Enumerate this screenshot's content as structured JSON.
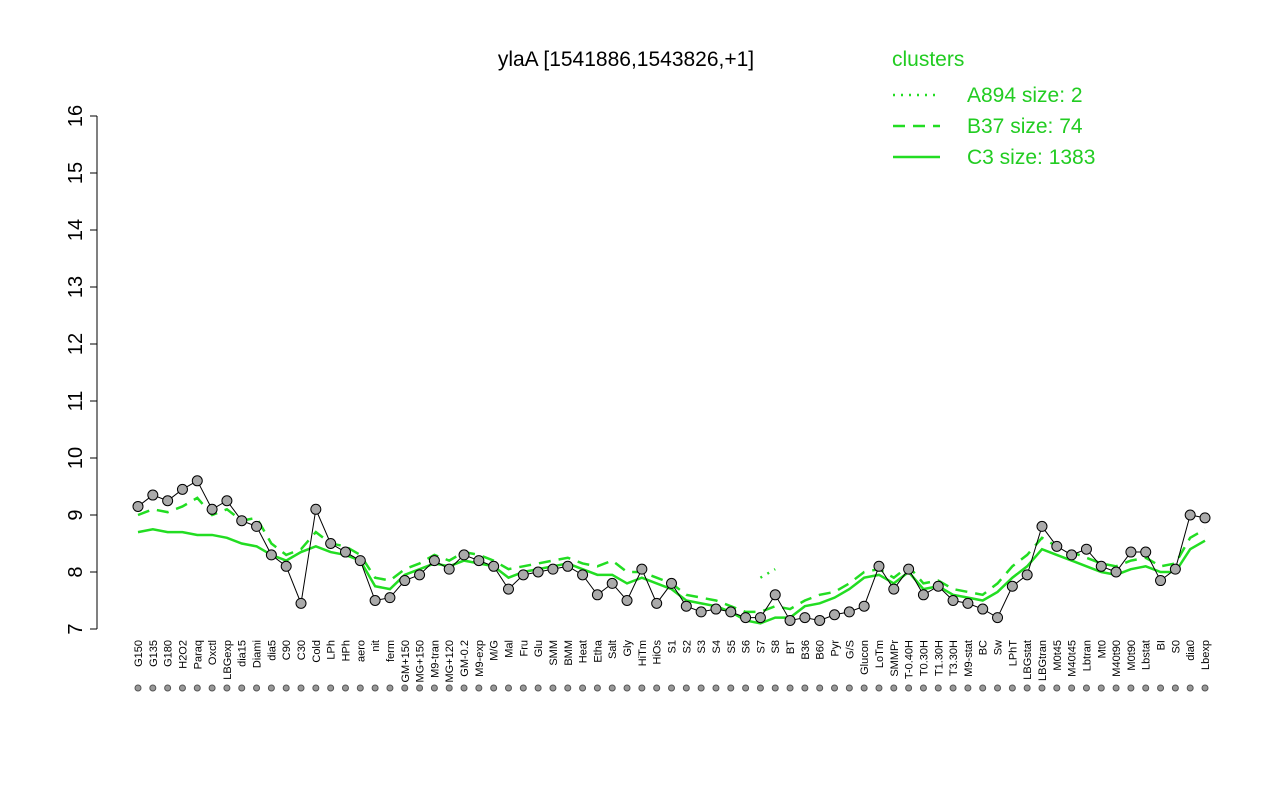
{
  "chart_data": {
    "type": "line",
    "title": "ylaA [1541886,1543826,+1]",
    "categories": [
      "G150",
      "G135",
      "G180",
      "H2O2",
      "Paraq",
      "Oxctl",
      "LBGexp",
      "dia15",
      "Diami",
      "dia5",
      "C90",
      "C30",
      "Cold",
      "LPh",
      "HPh",
      "aero",
      "nit",
      "ferm",
      "GM+150",
      "MG+150",
      "M9-tran",
      "MG+120",
      "GM-0.2",
      "M9-exp",
      "M/G",
      "Mal",
      "Fru",
      "Glu",
      "SMM",
      "BMM",
      "Heat",
      "Etha",
      "Salt",
      "Gly",
      "HiTm",
      "HiOs",
      "S1",
      "S2",
      "S3",
      "S4",
      "S5",
      "S6",
      "S7",
      "S8",
      "BT",
      "B36",
      "B60",
      "Pyr",
      "G/S",
      "Glucon",
      "LoTm",
      "SMMPr",
      "T-0.40H",
      "T0.30H",
      "T1.30H",
      "T3.30H",
      "M9-stat",
      "BC",
      "Sw",
      "LPhT",
      "LBGstat",
      "LBGtran",
      "M0t45",
      "M40t45",
      "Lbtran",
      "Mt0",
      "M40t90",
      "M0t90",
      "Lbstat",
      "BI",
      "S0",
      "dia0",
      "Lbexp"
    ],
    "values": [
      9.15,
      9.35,
      9.25,
      9.45,
      9.6,
      9.1,
      9.25,
      8.9,
      8.8,
      8.3,
      8.1,
      7.45,
      9.1,
      8.5,
      8.35,
      8.2,
      7.5,
      7.55,
      7.85,
      7.95,
      8.2,
      8.05,
      8.3,
      8.2,
      8.1,
      7.7,
      7.95,
      8.0,
      8.05,
      8.1,
      7.95,
      7.6,
      7.8,
      7.5,
      8.05,
      7.45,
      7.8,
      7.4,
      7.3,
      7.35,
      7.3,
      7.2,
      7.2,
      7.6,
      7.15,
      7.2,
      7.15,
      7.25,
      7.3,
      7.4,
      8.1,
      7.7,
      8.05,
      7.6,
      7.75,
      7.5,
      7.45,
      7.35,
      7.2,
      7.75,
      7.95,
      8.8,
      8.45,
      8.3,
      8.4,
      8.1,
      8.0,
      8.35,
      8.35,
      7.85,
      8.05,
      9.0,
      8.95
    ],
    "legend_title": "clusters",
    "series": [
      {
        "name": "A894 size: 2",
        "color": "#22dd22",
        "style": "dotted",
        "values": [
          null,
          null,
          null,
          null,
          null,
          null,
          null,
          null,
          null,
          null,
          null,
          null,
          null,
          null,
          null,
          null,
          null,
          null,
          null,
          null,
          null,
          null,
          null,
          null,
          null,
          null,
          null,
          null,
          null,
          null,
          null,
          null,
          null,
          null,
          null,
          null,
          null,
          null,
          null,
          null,
          null,
          null,
          7.9,
          8.05,
          null,
          null,
          null,
          null,
          null,
          null,
          null,
          null,
          null,
          null,
          null,
          null,
          null,
          null,
          null,
          null,
          null,
          null,
          null,
          null,
          null,
          null,
          null,
          null,
          null,
          null,
          null,
          null,
          null
        ]
      },
      {
        "name": "B37 size: 74",
        "color": "#22dd22",
        "style": "dashed",
        "values": [
          9.0,
          9.1,
          9.05,
          9.15,
          9.3,
          9.0,
          9.1,
          8.9,
          8.95,
          8.5,
          8.3,
          8.4,
          8.7,
          8.5,
          8.45,
          8.3,
          7.9,
          7.85,
          8.05,
          8.15,
          8.3,
          8.2,
          8.35,
          8.3,
          8.2,
          8.05,
          8.1,
          8.15,
          8.2,
          8.25,
          8.15,
          8.1,
          8.2,
          8.0,
          8.0,
          7.9,
          7.8,
          7.6,
          7.55,
          7.5,
          7.4,
          7.3,
          7.3,
          7.4,
          7.35,
          7.5,
          7.6,
          7.65,
          7.8,
          8.0,
          8.05,
          7.9,
          8.1,
          7.8,
          7.85,
          7.7,
          7.65,
          7.6,
          7.8,
          8.1,
          8.3,
          8.6,
          8.45,
          8.35,
          8.25,
          8.15,
          8.1,
          8.2,
          8.25,
          8.1,
          8.15,
          8.6,
          8.75
        ]
      },
      {
        "name": "C3 size: 1383",
        "color": "#22dd22",
        "style": "solid",
        "values": [
          8.7,
          8.75,
          8.7,
          8.7,
          8.65,
          8.65,
          8.6,
          8.5,
          8.45,
          8.3,
          8.2,
          8.35,
          8.45,
          8.35,
          8.3,
          8.2,
          7.75,
          7.7,
          7.95,
          8.05,
          8.15,
          8.1,
          8.2,
          8.15,
          8.1,
          7.9,
          8.0,
          8.05,
          8.1,
          8.15,
          8.05,
          7.95,
          7.95,
          7.8,
          7.9,
          7.8,
          7.7,
          7.5,
          7.45,
          7.4,
          7.3,
          7.15,
          7.1,
          7.2,
          7.2,
          7.4,
          7.45,
          7.55,
          7.7,
          7.9,
          7.95,
          7.8,
          8.0,
          7.7,
          7.75,
          7.6,
          7.55,
          7.5,
          7.65,
          7.9,
          8.1,
          8.4,
          8.3,
          8.2,
          8.1,
          8.0,
          7.95,
          8.05,
          8.1,
          8.0,
          8.0,
          8.4,
          8.55
        ]
      }
    ],
    "ylim": [
      7,
      16
    ],
    "yticks": [
      7,
      8,
      9,
      10,
      11,
      12,
      13,
      14,
      15,
      16
    ]
  }
}
